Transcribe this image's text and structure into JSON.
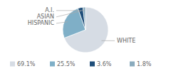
{
  "chart_data": {
    "type": "pie",
    "categories": [
      "WHITE",
      "HISPANIC",
      "ASIAN",
      "A.I."
    ],
    "values": [
      69.1,
      25.5,
      3.6,
      1.8
    ],
    "value_labels": [
      "69.1%",
      "25.5%",
      "3.6%",
      "1.8%"
    ],
    "colors": [
      "#d6dce4",
      "#7fafc7",
      "#1f4e79",
      "#8aabbd"
    ],
    "legend": "bottom"
  }
}
